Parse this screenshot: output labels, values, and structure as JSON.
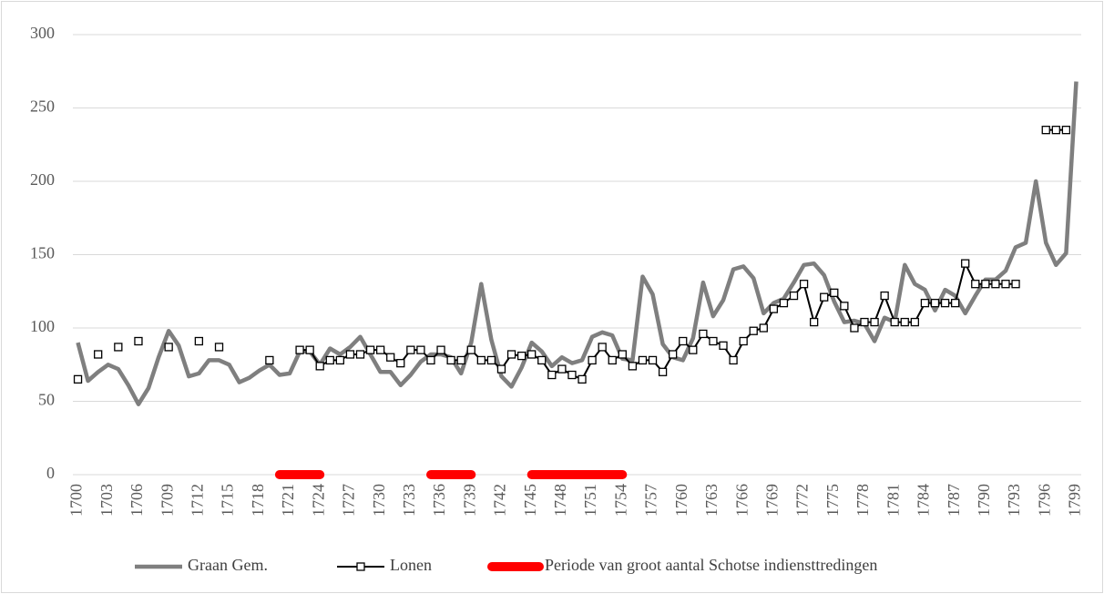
{
  "chart_data": {
    "type": "line",
    "categories": [
      "1700",
      null,
      null,
      "1703",
      null,
      null,
      "1706",
      null,
      null,
      "1709",
      null,
      null,
      "1712",
      null,
      null,
      "1715",
      null,
      null,
      "1718",
      null,
      null,
      "1721",
      null,
      null,
      "1724",
      null,
      null,
      "1727",
      null,
      null,
      "1730",
      null,
      null,
      "1733",
      null,
      null,
      "1736",
      null,
      null,
      "1739",
      null,
      null,
      "1742",
      null,
      null,
      "1745",
      null,
      null,
      "1748",
      null,
      null,
      "1751",
      null,
      null,
      "1754",
      null,
      null,
      "1757",
      null,
      null,
      "1760",
      null,
      null,
      "1763",
      null,
      null,
      "1766",
      null,
      null,
      "1769",
      null,
      null,
      "1772",
      null,
      null,
      "1775",
      null,
      null,
      "1778",
      null,
      null,
      "1781",
      null,
      null,
      "1784",
      null,
      null,
      "1787",
      null,
      null,
      "1790",
      null,
      null,
      "1793",
      null,
      null,
      "1796",
      null,
      null,
      "1799"
    ],
    "series": [
      {
        "name": "Graan Gem.",
        "color": "#7f7f7f",
        "values": [
          90,
          64,
          70,
          75,
          72,
          61,
          48,
          59,
          80,
          98,
          88,
          67,
          69,
          78,
          78,
          75,
          63,
          66,
          71,
          75,
          68,
          69,
          84,
          84,
          75,
          86,
          82,
          87,
          94,
          82,
          70,
          70,
          61,
          68,
          77,
          82,
          82,
          80,
          69,
          90,
          130,
          92,
          67,
          60,
          73,
          90,
          84,
          74,
          80,
          76,
          78,
          94,
          97,
          95,
          79,
          78,
          135,
          123,
          89,
          80,
          78,
          93,
          131,
          108,
          119,
          140,
          142,
          134,
          110,
          117,
          120,
          131,
          143,
          144,
          136,
          118,
          104,
          105,
          103,
          91,
          107,
          104,
          143,
          130,
          126,
          112,
          126,
          122,
          110,
          122,
          133,
          133,
          139,
          155,
          158,
          200,
          158,
          143,
          151,
          268
        ]
      },
      {
        "name": "Lonen",
        "color": "#000000",
        "marker": "square",
        "values": [
          65,
          null,
          82,
          null,
          87,
          null,
          91,
          null,
          null,
          87,
          null,
          null,
          91,
          null,
          87,
          null,
          null,
          null,
          null,
          78,
          null,
          null,
          85,
          85,
          74,
          78,
          78,
          82,
          82,
          85,
          85,
          80,
          76,
          85,
          85,
          78,
          85,
          78,
          78,
          85,
          78,
          78,
          72,
          82,
          81,
          82,
          78,
          68,
          72,
          68,
          65,
          78,
          87,
          78,
          82,
          74,
          78,
          78,
          70,
          82,
          91,
          85,
          96,
          91,
          88,
          78,
          91,
          98,
          100,
          113,
          117,
          122,
          130,
          104,
          121,
          124,
          115,
          100,
          104,
          104,
          122,
          104,
          104,
          104,
          117,
          117,
          117,
          117,
          144,
          130,
          130,
          130,
          130,
          130,
          null,
          null,
          235,
          235,
          235,
          null
        ]
      },
      {
        "name": "Periode van groot aantal Schotse indiensttredingen",
        "color": "#ff0000",
        "values": [
          null,
          null,
          null,
          null,
          null,
          null,
          null,
          null,
          null,
          null,
          null,
          null,
          null,
          null,
          null,
          null,
          null,
          null,
          null,
          null,
          0,
          0,
          0,
          0,
          0,
          null,
          null,
          null,
          null,
          null,
          null,
          null,
          null,
          null,
          null,
          0,
          0,
          0,
          0,
          0,
          null,
          null,
          null,
          null,
          null,
          0,
          0,
          0,
          0,
          0,
          0,
          0,
          0,
          0,
          0,
          null,
          null,
          null,
          null,
          null,
          null,
          null,
          null,
          null,
          null,
          null,
          null,
          null,
          null,
          null,
          null,
          null,
          null,
          null,
          null,
          null,
          null,
          null,
          null,
          null,
          null,
          null,
          null,
          null,
          null,
          null,
          null,
          null,
          null,
          null,
          null,
          null,
          null,
          null,
          null,
          null,
          null,
          null,
          null,
          null
        ]
      }
    ],
    "ylim": [
      0,
      300
    ],
    "yticks": [
      0,
      50,
      100,
      150,
      200,
      250,
      300
    ],
    "grid": true,
    "legend": "bottom"
  }
}
